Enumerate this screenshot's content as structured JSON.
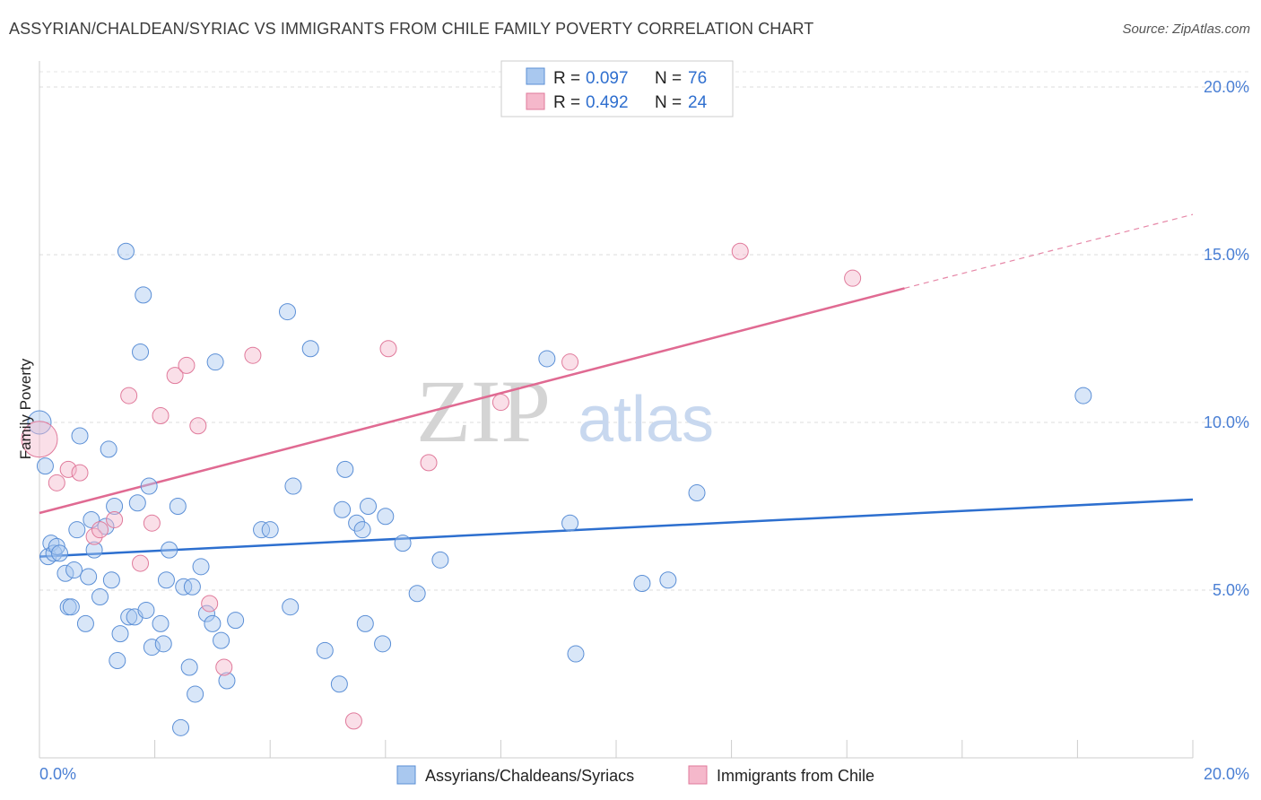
{
  "title": "ASSYRIAN/CHALDEAN/SYRIAC VS IMMIGRANTS FROM CHILE FAMILY POVERTY CORRELATION CHART",
  "source": "Source: ZipAtlas.com",
  "watermark": {
    "zip": "ZIP",
    "atlas": "atlas"
  },
  "legend": {
    "r_label": "R =",
    "n_label": "N =",
    "entries": [
      {
        "r": "0.097",
        "n": "76"
      },
      {
        "r": "0.492",
        "n": "24"
      }
    ]
  },
  "colors": {
    "blue_fill": "#a9c8ef",
    "blue_stroke": "#5b8fd6",
    "blue_line": "#2d6fcf",
    "pink_fill": "#f5b8cb",
    "pink_stroke": "#e07a9b",
    "pink_line": "#e06a92"
  },
  "chart_data": {
    "type": "scatter",
    "title": "ASSYRIAN/CHALDEAN/SYRIAC VS IMMIGRANTS FROM CHILE FAMILY POVERTY CORRELATION CHART",
    "xlabel": "",
    "ylabel": "Family Poverty",
    "xlim": [
      0,
      20
    ],
    "ylim": [
      0,
      20
    ],
    "x_tick_labels": [
      "0.0%",
      "20.0%"
    ],
    "y_tick_labels": [
      "5.0%",
      "10.0%",
      "15.0%",
      "20.0%"
    ],
    "y_ticks": [
      5,
      10,
      15,
      20
    ],
    "grid": true,
    "legend_position": "top-center",
    "series": [
      {
        "name": "Assyrians/Chaldeans/Syriacs",
        "points": [
          [
            0.0,
            10.0
          ],
          [
            0.1,
            8.7
          ],
          [
            0.15,
            6.0
          ],
          [
            0.2,
            6.4
          ],
          [
            0.25,
            6.1
          ],
          [
            0.3,
            6.3
          ],
          [
            0.35,
            6.1
          ],
          [
            0.45,
            5.5
          ],
          [
            0.5,
            4.5
          ],
          [
            0.55,
            4.5
          ],
          [
            0.6,
            5.6
          ],
          [
            0.65,
            6.8
          ],
          [
            0.7,
            9.6
          ],
          [
            0.8,
            4.0
          ],
          [
            0.85,
            5.4
          ],
          [
            0.9,
            7.1
          ],
          [
            0.95,
            6.2
          ],
          [
            1.05,
            4.8
          ],
          [
            1.15,
            6.9
          ],
          [
            1.2,
            9.2
          ],
          [
            1.25,
            5.3
          ],
          [
            1.3,
            7.5
          ],
          [
            1.35,
            2.9
          ],
          [
            1.4,
            3.7
          ],
          [
            1.5,
            15.1
          ],
          [
            1.55,
            4.2
          ],
          [
            1.65,
            4.2
          ],
          [
            1.7,
            7.6
          ],
          [
            1.75,
            12.1
          ],
          [
            1.8,
            13.8
          ],
          [
            1.85,
            4.4
          ],
          [
            1.9,
            8.1
          ],
          [
            1.95,
            3.3
          ],
          [
            2.1,
            4.0
          ],
          [
            2.15,
            3.4
          ],
          [
            2.2,
            5.3
          ],
          [
            2.25,
            6.2
          ],
          [
            2.4,
            7.5
          ],
          [
            2.45,
            0.9
          ],
          [
            2.5,
            5.1
          ],
          [
            2.6,
            2.7
          ],
          [
            2.65,
            5.1
          ],
          [
            2.7,
            1.9
          ],
          [
            2.8,
            5.7
          ],
          [
            2.9,
            4.3
          ],
          [
            3.0,
            4.0
          ],
          [
            3.05,
            11.8
          ],
          [
            3.15,
            3.5
          ],
          [
            3.25,
            2.3
          ],
          [
            3.4,
            4.1
          ],
          [
            3.85,
            6.8
          ],
          [
            4.0,
            6.8
          ],
          [
            4.3,
            13.3
          ],
          [
            4.35,
            4.5
          ],
          [
            4.4,
            8.1
          ],
          [
            4.7,
            12.2
          ],
          [
            4.95,
            3.2
          ],
          [
            5.2,
            2.2
          ],
          [
            5.25,
            7.4
          ],
          [
            5.3,
            8.6
          ],
          [
            5.5,
            7.0
          ],
          [
            5.6,
            6.8
          ],
          [
            5.65,
            4.0
          ],
          [
            5.7,
            7.5
          ],
          [
            5.95,
            3.4
          ],
          [
            6.0,
            7.2
          ],
          [
            6.3,
            6.4
          ],
          [
            6.55,
            4.9
          ],
          [
            6.95,
            5.9
          ],
          [
            8.8,
            11.9
          ],
          [
            9.2,
            7.0
          ],
          [
            9.3,
            3.1
          ],
          [
            10.45,
            5.2
          ],
          [
            10.9,
            5.3
          ],
          [
            11.4,
            7.9
          ],
          [
            18.1,
            10.8
          ]
        ],
        "trend": {
          "x": [
            0,
            20
          ],
          "y": [
            6.0,
            7.7
          ]
        }
      },
      {
        "name": "Immigrants from Chile",
        "points": [
          [
            0.0,
            9.5
          ],
          [
            0.3,
            8.2
          ],
          [
            0.5,
            8.6
          ],
          [
            0.7,
            8.5
          ],
          [
            0.95,
            6.6
          ],
          [
            1.05,
            6.8
          ],
          [
            1.3,
            7.1
          ],
          [
            1.55,
            10.8
          ],
          [
            1.75,
            5.8
          ],
          [
            1.95,
            7.0
          ],
          [
            2.1,
            10.2
          ],
          [
            2.35,
            11.4
          ],
          [
            2.55,
            11.7
          ],
          [
            2.75,
            9.9
          ],
          [
            2.95,
            4.6
          ],
          [
            3.2,
            2.7
          ],
          [
            3.7,
            12.0
          ],
          [
            5.45,
            1.1
          ],
          [
            6.05,
            12.2
          ],
          [
            6.75,
            8.8
          ],
          [
            8.0,
            10.6
          ],
          [
            9.2,
            11.8
          ],
          [
            12.15,
            15.1
          ],
          [
            14.1,
            14.3
          ]
        ],
        "trend": {
          "x": [
            0,
            15
          ],
          "y": [
            7.3,
            14.0
          ]
        },
        "trend_extension": {
          "x": [
            15,
            20
          ],
          "y": [
            14.0,
            16.2
          ]
        }
      }
    ]
  },
  "bottom_legend": [
    "Assyrians/Chaldeans/Syriacs",
    "Immigrants from Chile"
  ]
}
